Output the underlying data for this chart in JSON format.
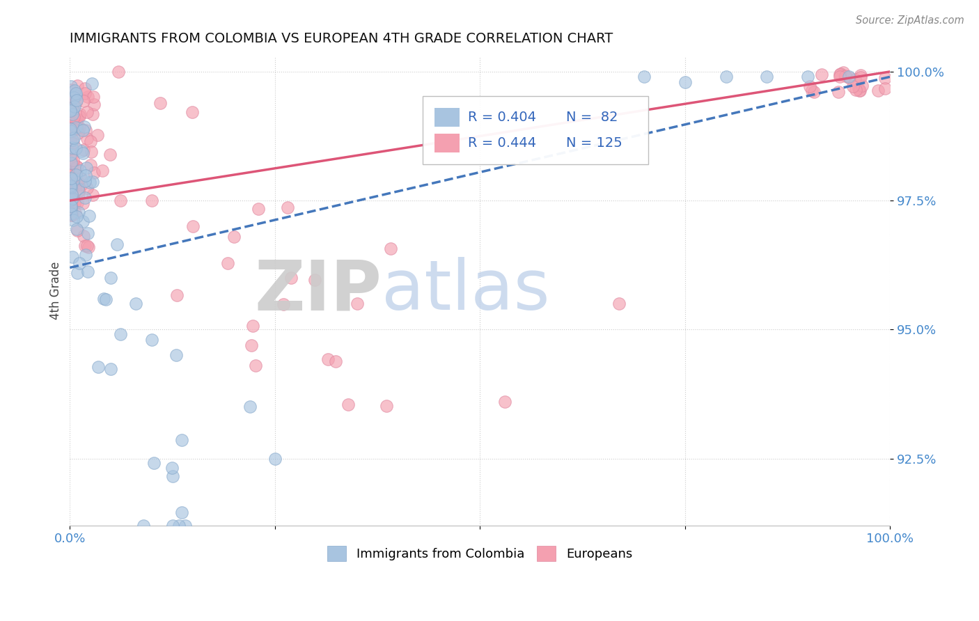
{
  "title": "IMMIGRANTS FROM COLOMBIA VS EUROPEAN 4TH GRADE CORRELATION CHART",
  "source": "Source: ZipAtlas.com",
  "ylabel": "4th Grade",
  "xlim": [
    0.0,
    1.0
  ],
  "ylim": [
    0.912,
    1.003
  ],
  "y_ticks": [
    0.925,
    0.95,
    0.975,
    1.0
  ],
  "y_tick_labels": [
    "92.5%",
    "95.0%",
    "97.5%",
    "100.0%"
  ],
  "colombia_color": "#a8c4e0",
  "european_color": "#f4a0b0",
  "colombia_trend_color": "#4477bb",
  "european_trend_color": "#dd5577",
  "legend_R_colombia": "R = 0.404",
  "legend_N_colombia": "N =  82",
  "legend_R_european": "R = 0.444",
  "legend_N_european": "N = 125",
  "background_color": "#ffffff"
}
